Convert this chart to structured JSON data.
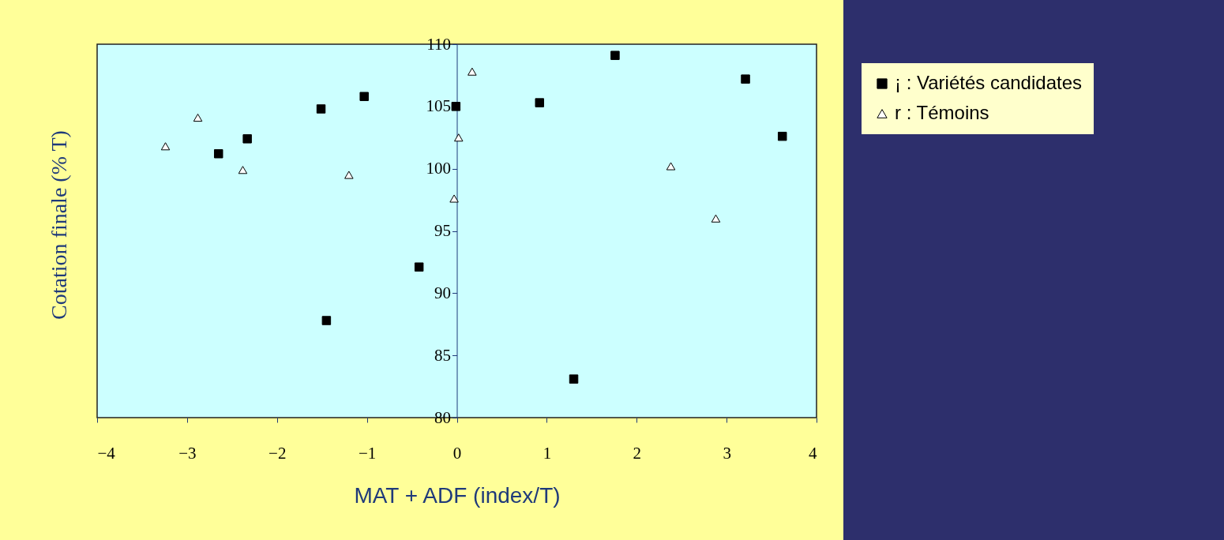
{
  "chart_data": {
    "type": "scatter",
    "xlabel": "MAT + ADF (index/T)",
    "ylabel": "Cotation finale (% T)",
    "xlim": [
      -4,
      4
    ],
    "xticks": [
      -4,
      -3,
      -2,
      -1,
      0,
      1,
      2,
      3,
      4
    ],
    "ylim": [
      80,
      110
    ],
    "yticks": [
      80,
      85,
      90,
      95,
      100,
      105,
      110
    ],
    "grid": false,
    "legend": "right",
    "series": [
      {
        "name": "¡ : Variétés candidates",
        "color": "#000000",
        "marker": "square",
        "x": [
          -2.65,
          -2.33,
          -1.51,
          -1.03,
          -1.45,
          -0.42,
          -0.01,
          0.92,
          1.3,
          1.76,
          3.21,
          3.62
        ],
        "values": [
          101.2,
          102.4,
          104.8,
          105.8,
          87.8,
          92.1,
          105.0,
          105.3,
          83.1,
          109.1,
          107.2,
          102.6
        ]
      },
      {
        "name": "r : Témoins",
        "color": "#ffffff",
        "marker": "triangle",
        "x": [
          -3.24,
          -2.88,
          -2.38,
          -1.2,
          -0.03,
          0.02,
          0.17,
          2.38,
          2.88
        ],
        "values": [
          101.8,
          104.1,
          99.9,
          99.5,
          97.6,
          102.5,
          107.8,
          100.2,
          96.0
        ]
      }
    ]
  }
}
